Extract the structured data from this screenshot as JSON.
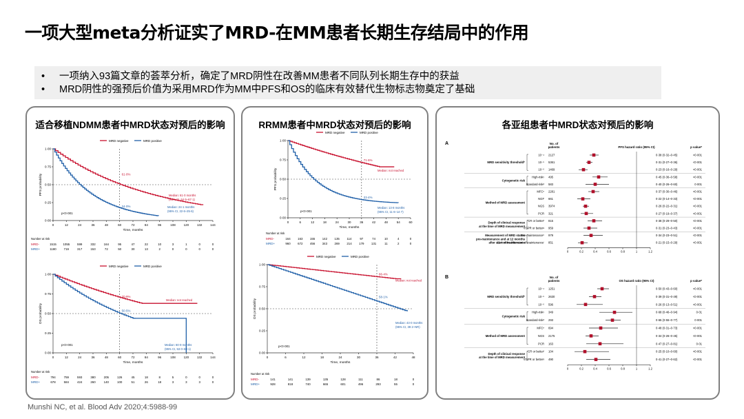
{
  "title": "一项大型meta分析证实了MRD-在MM患者长期生存结局中的作用",
  "bullets": [
    "一项纳入93篇文章的荟萃分析，确定了MRD阴性在改善MM患者不同队列长期生存中的获益",
    "MRD阴性的强预后价值为采用MRD作为MM中PFS和OS的临床有效替代生物标志物奠定了基础"
  ],
  "panels": {
    "left": {
      "title": "适合移植NDMM患者中MRD状态对预后的影响",
      "legend": [
        "MRD negative",
        "MRD positive"
      ],
      "pfs": {
        "ylabel": "PFS probability",
        "xlabel": "Time, months",
        "yticks": [
          "1·00",
          "0·75",
          "0·50",
          "0·25",
          "0·00"
        ],
        "xticks": [
          "0",
          "12",
          "24",
          "36",
          "48",
          "60",
          "72",
          "84",
          "96",
          "108",
          "120",
          "132",
          "144"
        ],
        "label_neg": "61·0%",
        "label_pos": "24·0%",
        "median_neg_1": "Median: 61·0 months",
        "median_neg_2": "(95% CI, 54·5–67·1)",
        "median_pos_1": "Median: 24·1 months",
        "median_pos_2": "(95% CI, 22·6–25·6)",
        "p": "p<0·001"
      },
      "risk1": {
        "header": "Number at risk",
        "rows": [
          {
            "label": "MRD-",
            "values": [
              "1515",
              "1055",
              "599",
              "332",
              "164",
              "95",
              "47",
              "22",
              "10",
              "3",
              "1",
              "0",
              "0"
            ]
          },
          {
            "label": "MRD+",
            "values": [
              "1180",
              "719",
              "317",
              "153",
              "72",
              "50",
              "30",
              "13",
              "2",
              "0",
              "0",
              "0",
              "0"
            ]
          }
        ]
      },
      "os": {
        "ylabel": "OS probability",
        "xlabel": "Time, months",
        "yticks": [
          "1·00",
          "0·75",
          "0·50",
          "0·25",
          "0·00"
        ],
        "xticks": [
          "0",
          "12",
          "24",
          "36",
          "48",
          "60",
          "72",
          "84",
          "96",
          "108",
          "120",
          "132",
          "144"
        ],
        "label_neg": "70·9%",
        "label_pos": "50·5%",
        "median_neg": "Median: not reached",
        "median_pos_1": "Median: 60·9 months",
        "median_pos_2": "(95% CI, 53·0–68·1)",
        "p": "p<0·001"
      },
      "risk2": {
        "header": "Number at risk",
        "rows": [
          {
            "label": "MRD-",
            "values": [
              "794",
              "759",
              "593",
              "380",
              "205",
              "126",
              "45",
              "18",
              "8",
              "5",
              "0",
              "0",
              "0"
            ]
          },
          {
            "label": "MRD+",
            "values": [
              "678",
              "584",
              "424",
              "260",
              "140",
              "100",
              "51",
              "26",
              "18",
              "3",
              "3",
              "3",
              "0"
            ]
          }
        ]
      }
    },
    "middle": {
      "title": "RRMM患者中MRD状态对预后的影响",
      "legend": [
        "MRD negative",
        "MRD positive"
      ],
      "pfs": {
        "ylabel": "PFS probability",
        "xlabel": "Time, months",
        "yticks": [
          "1·00",
          "0·75",
          "0·50",
          "0·25",
          "0·00"
        ],
        "xticks": [
          "0",
          "6",
          "12",
          "18",
          "24",
          "30",
          "36",
          "42",
          "48",
          "54",
          "60"
        ],
        "label_neg": "71·6%",
        "label_pos": "23·4%",
        "median_neg": "Median: not reached",
        "median_pos_1": "Median: 13·8 months",
        "median_pos_2": "(95% CI, 11·6–14·7)",
        "p": "p<0·001"
      },
      "risk1": {
        "header": "Number at risk",
        "rows": [
          {
            "label": "MRD-",
            "values": [
              "164",
              "163",
              "155",
              "142",
              "135",
              "114",
              "97",
              "74",
              "10",
              "4",
              "0"
            ]
          },
          {
            "label": "MRD+",
            "values": [
              "960",
              "672",
              "456",
              "343",
              "269",
              "214",
              "179",
              "131",
              "11",
              "2",
              "0"
            ]
          }
        ]
      },
      "os": {
        "ylabel": "OS probability",
        "xlabel": "Time, months",
        "yticks": [
          "1·00",
          "0·75",
          "0·50",
          "0·25",
          "0·00"
        ],
        "xticks": [
          "0",
          "6",
          "12",
          "18",
          "24",
          "30",
          "36",
          "42",
          "48"
        ],
        "label_neg": "86·4%",
        "label_pos": "58·1%",
        "median_neg": "Median: not reached",
        "median_pos_1": "Median: 43·0 months",
        "median_pos_2": "(95% CI, 39·2–NR)",
        "p": "p<0·001"
      },
      "risk2": {
        "header": "Number at risk",
        "rows": [
          {
            "label": "MRD-",
            "values": [
              "141",
              "141",
              "139",
              "135",
              "128",
              "111",
              "86",
              "18",
              "0"
            ]
          },
          {
            "label": "MRD+",
            "values": [
              "928",
              "818",
              "740",
              "665",
              "601",
              "496",
              "293",
              "55",
              "0"
            ]
          }
        ]
      }
    },
    "right": {
      "title": "各亚组患者中MRD状态对预后的影响",
      "forestA": {
        "letter": "A",
        "h_no1": "No. of",
        "h_no2": "patients",
        "h_hr": "PFS hazard ratio (95% CI)",
        "h_p": "p value*",
        "xticks": [
          "0",
          "0.2",
          "0.4",
          "0.6",
          "0.8",
          "1",
          "1.2"
        ],
        "groups": [
          {
            "name": "MRD sensitivity threshold",
            "sup": "b",
            "rows": [
              {
                "sub": "10⁻⁴",
                "n": "2127",
                "hr": 0.38,
                "lo": 0.32,
                "hi": 0.45,
                "ci": "0·38 (0·32–0·45)",
                "p": "<0·001"
              },
              {
                "sub": "10⁻⁵",
                "n": "5361",
                "hr": 0.31,
                "lo": 0.27,
                "hi": 0.36,
                "ci": "0·31 (0·27–0·36)",
                "p": "<0·001"
              },
              {
                "sub": "10⁻⁶",
                "n": "1469",
                "hr": 0.23,
                "lo": 0.16,
                "hi": 0.29,
                "ci": "0·23 (0·16–0·29)",
                "p": "<0·001"
              }
            ]
          },
          {
            "name": "Cytogenetic risk",
            "sup": "",
            "rows": [
              {
                "sub": "High-riskᶜ",
                "n": "495",
                "hr": 0.45,
                "lo": 0.36,
                "hi": 0.58,
                "ci": "0·45 (0·36–0·58)",
                "p": "<0·001"
              },
              {
                "sub": "Standard-riskᵈ",
                "n": "583",
                "hr": 0.4,
                "lo": 0.26,
                "hi": 0.6,
                "ci": "0·40 (0·26–0·60)",
                "p": "0·001"
              }
            ]
          },
          {
            "name": "Method of MRD assessment",
            "sup": "",
            "rows": [
              {
                "sub": "MFCᵉ",
                "n": "2281",
                "hr": 0.37,
                "lo": 0.3,
                "hi": 0.46,
                "ci": "0·37 (0·30–0·46)",
                "p": "<0·001"
              },
              {
                "sub": "NGF",
                "n": "661",
                "hr": 0.22,
                "lo": 0.14,
                "hi": 0.33,
                "ci": "0·22 (0·14–0·33)",
                "p": "<0·001"
              },
              {
                "sub": "NGS",
                "n": "3974",
                "hr": 0.26,
                "lo": 0.22,
                "hi": 0.31,
                "ci": "0·26 (0·22–0·31)",
                "p": "<0·001"
              },
              {
                "sub": "PCR",
                "n": "321",
                "hr": 0.27,
                "lo": 0.19,
                "hi": 0.37,
                "ci": "0·27 (0·19–0·37)",
                "p": "<0·001"
              }
            ]
          },
          {
            "name": "Depth of clinical response|at the time of MRD measurement",
            "sup": "",
            "rows": [
              {
                "sub": "CR or betterᶠ",
                "n": "815",
                "hr": 0.38,
                "lo": 0.29,
                "hi": 0.5,
                "ci": "0·38 (0·29–0·50)",
                "p": "<0·001"
              },
              {
                "sub": "VGPR or betterᵍ",
                "n": "959",
                "hr": 0.31,
                "lo": 0.23,
                "hi": 0.43,
                "ci": "0·31 (0·23–0·43)",
                "p": "<0·001"
              }
            ]
          },
          {
            "name": "Measurement of MRD status|pre-maintenance and at 12 months|after start of maintenance",
            "sup": "",
            "rows": [
              {
                "sub": "Pre-maintenanceʰ",
                "n": "979",
                "hr": 0.34,
                "lo": 0.23,
                "hi": 0.51,
                "ci": "0·34 (0·23–0·51)",
                "p": "<0·001"
              },
              {
                "sub": "12 months after start of maintenanceⁱ",
                "n": "851",
                "hr": 0.21,
                "lo": 0.15,
                "hi": 0.29,
                "ci": "0·21 (0·15–0·29)",
                "p": "<0·001"
              }
            ]
          }
        ]
      },
      "forestB": {
        "letter": "B",
        "h_no1": "No. of",
        "h_no2": "patients",
        "h_hr": "OS hazard ratio (95% CI)",
        "h_p": "p value*",
        "xticks": [
          "0",
          "0.2",
          "0.4",
          "0.6",
          "0.8",
          "1",
          "1.2"
        ],
        "groups": [
          {
            "name": "MRD sensitivity threshold",
            "sup": "b",
            "rows": [
              {
                "sub": "10⁻⁴",
                "n": "1251",
                "hr": 0.5,
                "lo": 0.43,
                "hi": 0.6,
                "ci": "0·50 (0·43–0·60)",
                "p": "<0·001"
              },
              {
                "sub": "10⁻⁵",
                "n": "2630",
                "hr": 0.39,
                "lo": 0.31,
                "hi": 0.49,
                "ci": "0·39 (0·31–0·49)",
                "p": "<0·001"
              },
              {
                "sub": "10⁻⁶",
                "n": "596",
                "hr": 0.26,
                "lo": 0.13,
                "hi": 0.51,
                "ci": "0·26 (0·13–0·51)",
                "p": "<0·001"
              }
            ]
          },
          {
            "name": "Cytogenetic risk",
            "sup": "",
            "rows": [
              {
                "sub": "High-riskᶜ",
                "n": "349",
                "hr": 0.68,
                "lo": 0.46,
                "hi": 0.94,
                "ci": "0·68 (0·46–0·94)",
                "p": "0·01"
              },
              {
                "sub": "Standard-riskᵈ",
                "n": "293",
                "hr": 0.65,
                "lo": 0.55,
                "hi": 0.77,
                "ci": "0·65 (0·55–0·77)",
                "p": "0·001"
              }
            ]
          },
          {
            "name": "Method of MRD assessment",
            "sup": "",
            "rows": [
              {
                "sub": "MFCᵉ",
                "n": "694",
                "hr": 0.48,
                "lo": 0.31,
                "hi": 0.73,
                "ci": "0·48 (0·31–0·73)",
                "p": "<0·001"
              },
              {
                "sub": "NGS",
                "n": "2175",
                "hr": 0.34,
                "lo": 0.26,
                "hi": 0.45,
                "ci": "0·34 (0·26–0·45)",
                "p": "<0·001"
              },
              {
                "sub": "PCR",
                "n": "163",
                "hr": 0.47,
                "lo": 0.27,
                "hi": 0.81,
                "ci": "0·47 (0·27–0·81)",
                "p": "0·01"
              }
            ]
          },
          {
            "name": "Depth of clinical response|at the time of MRD measurement",
            "sup": "",
            "rows": [
              {
                "sub": "CR or betterᶠ",
                "n": "104",
                "hr": 0.25,
                "lo": 0.1,
                "hi": 0.6,
                "ci": "0·25 (0·10–0·60)",
                "p": "<0·001"
              },
              {
                "sub": "VGPR or betterᵍ",
                "n": "490",
                "hr": 0.41,
                "lo": 0.27,
                "hi": 0.62,
                "ci": "0·41 (0·27–0·62)",
                "p": "<0·001"
              }
            ]
          }
        ]
      }
    }
  },
  "footer": "Munshi NC, et al. Blood Adv 2020;4:5988-99",
  "colors": {
    "mrd_negative": "#c8102e",
    "mrd_positive": "#1f5fa8"
  }
}
